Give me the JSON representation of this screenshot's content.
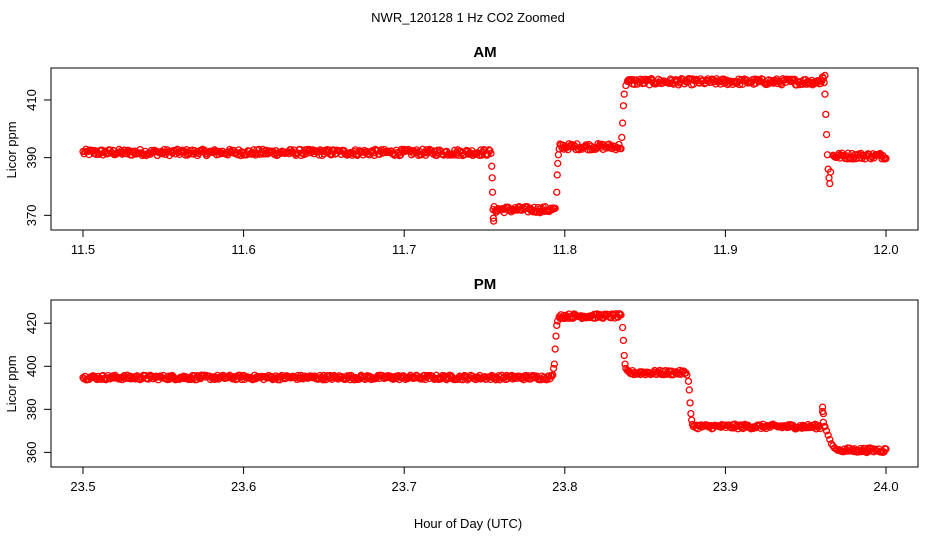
{
  "figure": {
    "title": "NWR_120128  1 Hz CO2 Zoomed",
    "xlabel": "Hour of Day (UTC)"
  },
  "chart_data": [
    {
      "type": "scatter",
      "title": "AM",
      "xlabel": "",
      "ylabel": "Licor ppm",
      "xlim": [
        11.5,
        12.0
      ],
      "ylim": [
        367,
        419
      ],
      "xticks": [
        11.5,
        11.6,
        11.7,
        11.8,
        11.9,
        12.0
      ],
      "xtick_labels": [
        "11.5",
        "11.6",
        "11.7",
        "11.8",
        "11.9",
        "12.0"
      ],
      "yticks": [
        370,
        390,
        410
      ],
      "ytick_labels": [
        "370",
        "390",
        "410"
      ],
      "grid": false,
      "marker": "open-circle",
      "color": "#ff0000",
      "series": [
        {
          "segments": [
            {
              "x0": 11.5,
              "x1": 11.754,
              "y": 391.8
            },
            {
              "x0": 11.756,
              "x1": 11.794,
              "y": 372.0
            },
            {
              "x0": 11.797,
              "x1": 11.835,
              "y": 393.8
            },
            {
              "x0": 11.839,
              "x1": 11.96,
              "y": 416.3
            },
            {
              "x0": 11.967,
              "x1": 12.0,
              "y": 390.6
            }
          ],
          "transitions": [
            {
              "x": [
                11.7545,
                11.7548,
                11.755,
                11.7553,
                11.7555,
                11.7557
              ],
              "y": [
                387,
                383,
                378,
                372,
                369,
                368
              ]
            },
            {
              "x": [
                11.795,
                11.7953,
                11.7956,
                11.796,
                11.7965
              ],
              "y": [
                378,
                384,
                388,
                391,
                393
              ]
            },
            {
              "x": [
                11.8355,
                11.836,
                11.8365,
                11.837,
                11.838
              ],
              "y": [
                397,
                402,
                408,
                412,
                415
              ]
            },
            {
              "x": [
                11.9605,
                11.961,
                11.9615,
                11.962
              ],
              "y": [
                418,
                417.5,
                416,
                418.5
              ]
            },
            {
              "x": [
                11.962,
                11.9625,
                11.963,
                11.9635,
                11.964,
                11.9645,
                11.965,
                11.9655
              ],
              "y": [
                412,
                405,
                398,
                391,
                386,
                383,
                381,
                385
              ]
            }
          ]
        }
      ]
    },
    {
      "type": "scatter",
      "title": "PM",
      "xlabel": "",
      "ylabel": "Licor ppm",
      "xlim": [
        23.5,
        24.0
      ],
      "ylim": [
        356,
        428
      ],
      "xticks": [
        23.5,
        23.6,
        23.7,
        23.8,
        23.9,
        24.0
      ],
      "xtick_labels": [
        "23.5",
        "23.6",
        "23.7",
        "23.8",
        "23.9",
        "24.0"
      ],
      "yticks": [
        360,
        380,
        400,
        420
      ],
      "ytick_labels": [
        "360",
        "380",
        "400",
        "420"
      ],
      "grid": false,
      "marker": "open-circle",
      "color": "#ff0000",
      "series": [
        {
          "segments": [
            {
              "x0": 23.5,
              "x1": 23.792,
              "y": 394.8
            },
            {
              "x0": 23.797,
              "x1": 23.835,
              "y": 423.3
            },
            {
              "x0": 23.839,
              "x1": 23.876,
              "y": 397.0
            },
            {
              "x0": 23.881,
              "x1": 23.959,
              "y": 372.0
            },
            {
              "x0": 23.971,
              "x1": 24.0,
              "y": 361.0
            }
          ],
          "transitions": [
            {
              "x": [
                23.7925,
                23.793,
                23.7935,
                23.794,
                23.7945,
                23.795,
                23.7955,
                23.7965
              ],
              "y": [
                396,
                399,
                401,
                408,
                414,
                419,
                421,
                423
              ]
            },
            {
              "x": [
                23.836,
                23.8365,
                23.837,
                23.8375,
                23.838
              ],
              "y": [
                418,
                412,
                405,
                401,
                399
              ]
            },
            {
              "x": [
                23.877,
                23.8775,
                23.878,
                23.8785,
                23.879,
                23.8795,
                23.88
              ],
              "y": [
                393,
                389,
                383,
                378,
                375,
                373,
                372
              ]
            },
            {
              "x": [
                23.9605,
                23.9605,
                23.961,
                23.961,
                23.9615
              ],
              "y": [
                381,
                379,
                378,
                374,
                372
              ]
            },
            {
              "x": [
                23.962,
                23.963,
                23.964,
                23.965,
                23.966,
                23.967,
                23.968,
                23.969,
                23.97
              ],
              "y": [
                372,
                370,
                368,
                366,
                364,
                363,
                362,
                361.5,
                361
              ]
            }
          ]
        }
      ]
    }
  ]
}
